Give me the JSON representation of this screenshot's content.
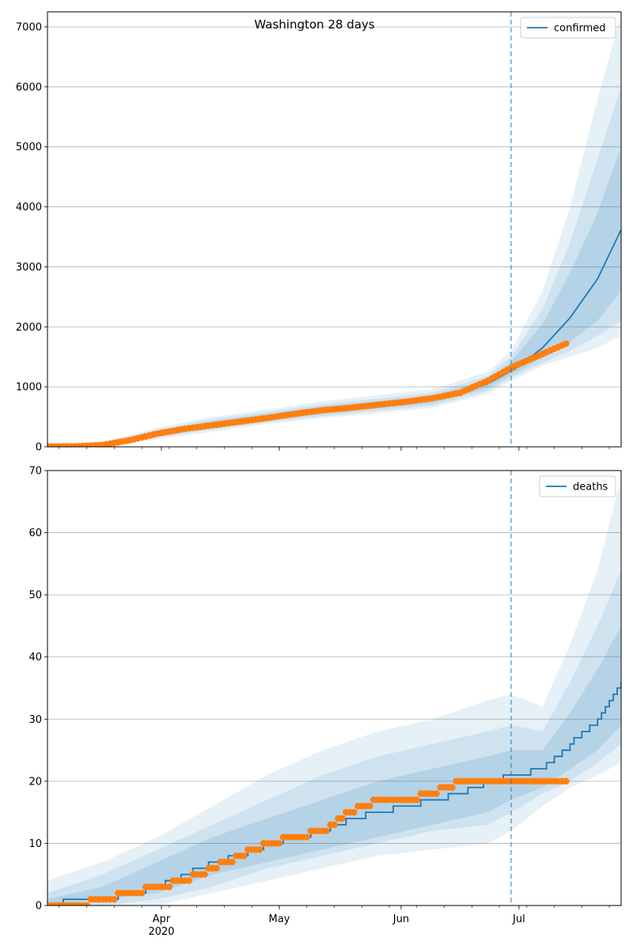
{
  "chart_data": [
    {
      "type": "line",
      "title": "Washington 28 days",
      "xlabel": "",
      "ylabel": "",
      "x_range": [
        "2020-03-03",
        "2020-07-27"
      ],
      "ylim": [
        0,
        7250
      ],
      "yticks": [
        0,
        1000,
        2000,
        3000,
        4000,
        5000,
        6000,
        7000
      ],
      "grid": "y-major",
      "legend": {
        "position": "upper right",
        "entries": [
          "confirmed"
        ]
      },
      "forecast_start": "2020-06-29",
      "series": [
        {
          "name": "confirmed",
          "color": "#1f77b4",
          "kind": "model-median",
          "x": [
            "2020-03-03",
            "2020-03-10",
            "2020-03-17",
            "2020-03-24",
            "2020-03-31",
            "2020-04-07",
            "2020-04-14",
            "2020-04-21",
            "2020-04-28",
            "2020-05-05",
            "2020-05-12",
            "2020-05-19",
            "2020-05-26",
            "2020-06-02",
            "2020-06-09",
            "2020-06-16",
            "2020-06-23",
            "2020-06-30",
            "2020-07-07",
            "2020-07-14",
            "2020-07-21",
            "2020-07-27"
          ],
          "values": [
            5,
            8,
            25,
            100,
            220,
            310,
            380,
            440,
            500,
            560,
            620,
            670,
            720,
            770,
            830,
            910,
            1050,
            1300,
            1650,
            2150,
            2800,
            3620
          ]
        },
        {
          "name": "observed",
          "color": "#ff7f0e",
          "kind": "markers",
          "x": [
            "2020-03-03",
            "2020-03-10",
            "2020-03-17",
            "2020-03-24",
            "2020-03-31",
            "2020-04-07",
            "2020-04-14",
            "2020-04-21",
            "2020-04-28",
            "2020-05-05",
            "2020-05-12",
            "2020-05-19",
            "2020-05-26",
            "2020-06-02",
            "2020-06-09",
            "2020-06-16",
            "2020-06-23",
            "2020-06-30",
            "2020-07-07",
            "2020-07-13"
          ],
          "values": [
            5,
            8,
            30,
            110,
            220,
            300,
            360,
            420,
            480,
            550,
            610,
            650,
            700,
            750,
            810,
            900,
            1100,
            1350,
            1550,
            1720
          ]
        }
      ],
      "bands": [
        {
          "x": [
            "2020-03-03",
            "2020-03-17",
            "2020-03-31",
            "2020-04-14",
            "2020-04-28",
            "2020-05-12",
            "2020-05-26",
            "2020-06-09",
            "2020-06-23",
            "2020-06-29",
            "2020-07-07",
            "2020-07-14",
            "2020-07-21",
            "2020-07-27"
          ],
          "lower": [
            0,
            0,
            130,
            250,
            380,
            480,
            560,
            650,
            880,
            1100,
            1350,
            1500,
            1650,
            1850
          ],
          "upper": [
            10,
            70,
            320,
            500,
            620,
            760,
            860,
            960,
            1250,
            1600,
            2600,
            4000,
            5800,
            7200
          ]
        },
        {
          "x": [
            "2020-03-03",
            "2020-03-17",
            "2020-03-31",
            "2020-04-14",
            "2020-04-28",
            "2020-05-12",
            "2020-05-26",
            "2020-06-09",
            "2020-06-23",
            "2020-06-29",
            "2020-07-07",
            "2020-07-14",
            "2020-07-21",
            "2020-07-27"
          ],
          "lower": [
            0,
            5,
            160,
            290,
            410,
            510,
            600,
            690,
            930,
            1150,
            1400,
            1600,
            1850,
            2100
          ],
          "upper": [
            8,
            55,
            290,
            460,
            580,
            710,
            800,
            900,
            1180,
            1500,
            2300,
            3400,
            4800,
            6000
          ]
        },
        {
          "x": [
            "2020-03-03",
            "2020-03-17",
            "2020-03-31",
            "2020-04-14",
            "2020-04-28",
            "2020-05-12",
            "2020-05-26",
            "2020-06-09",
            "2020-06-23",
            "2020-06-29",
            "2020-07-07",
            "2020-07-14",
            "2020-07-21",
            "2020-07-27"
          ],
          "lower": [
            2,
            12,
            185,
            320,
            440,
            545,
            640,
            730,
            980,
            1200,
            1480,
            1750,
            2100,
            2600
          ],
          "upper": [
            6,
            42,
            260,
            430,
            550,
            670,
            760,
            850,
            1120,
            1420,
            2050,
            2900,
            3900,
            5000
          ]
        }
      ],
      "xticks": [
        "Apr\n2020",
        "May",
        "Jun",
        "Jul"
      ]
    },
    {
      "type": "line",
      "title": "",
      "xlabel": "",
      "ylabel": "",
      "x_range": [
        "2020-03-03",
        "2020-07-27"
      ],
      "ylim": [
        0,
        70
      ],
      "yticks": [
        0,
        10,
        20,
        30,
        40,
        50,
        60,
        70
      ],
      "grid": "y-major",
      "legend": {
        "position": "upper right",
        "entries": [
          "deaths"
        ]
      },
      "forecast_start": "2020-06-29",
      "series": [
        {
          "name": "deaths",
          "color": "#1f77b4",
          "kind": "model-median-step",
          "x": [
            "2020-03-03",
            "2020-03-10",
            "2020-03-17",
            "2020-03-24",
            "2020-03-31",
            "2020-04-07",
            "2020-04-14",
            "2020-04-21",
            "2020-04-28",
            "2020-05-05",
            "2020-05-12",
            "2020-05-19",
            "2020-05-26",
            "2020-06-02",
            "2020-06-09",
            "2020-06-16",
            "2020-06-23",
            "2020-06-30",
            "2020-07-07",
            "2020-07-14",
            "2020-07-21",
            "2020-07-27"
          ],
          "values": [
            0,
            1,
            1,
            2,
            3,
            5,
            7,
            8,
            10,
            11,
            12,
            14,
            15,
            16,
            17,
            18,
            20,
            21,
            22,
            26,
            30,
            36
          ]
        },
        {
          "name": "observed",
          "color": "#ff7f0e",
          "kind": "markers",
          "x": [
            "2020-03-03",
            "2020-03-10",
            "2020-03-17",
            "2020-03-24",
            "2020-03-31",
            "2020-04-07",
            "2020-04-14",
            "2020-04-21",
            "2020-04-28",
            "2020-05-05",
            "2020-05-12",
            "2020-05-19",
            "2020-05-26",
            "2020-06-02",
            "2020-06-09",
            "2020-06-16",
            "2020-06-23",
            "2020-06-30",
            "2020-07-07",
            "2020-07-13"
          ],
          "values": [
            0,
            0,
            1,
            2,
            3,
            4,
            6,
            8,
            10,
            11,
            12,
            15,
            17,
            17,
            18,
            20,
            20,
            20,
            20,
            20
          ]
        }
      ],
      "bands": [
        {
          "x": [
            "2020-03-03",
            "2020-03-17",
            "2020-03-31",
            "2020-04-14",
            "2020-04-28",
            "2020-05-12",
            "2020-05-26",
            "2020-06-09",
            "2020-06-23",
            "2020-06-29",
            "2020-07-07",
            "2020-07-14",
            "2020-07-21",
            "2020-07-27"
          ],
          "lower": [
            0,
            0,
            0,
            2,
            4,
            6,
            8,
            9,
            10,
            12,
            16,
            19,
            21,
            23
          ],
          "upper": [
            4,
            7,
            11,
            16,
            21,
            25,
            28,
            30,
            33,
            34,
            32,
            42,
            54,
            69
          ]
        },
        {
          "x": [
            "2020-03-03",
            "2020-03-17",
            "2020-03-31",
            "2020-04-14",
            "2020-04-28",
            "2020-05-12",
            "2020-05-26",
            "2020-06-09",
            "2020-06-23",
            "2020-06-29",
            "2020-07-07",
            "2020-07-14",
            "2020-07-21",
            "2020-07-27"
          ],
          "lower": [
            0,
            0,
            1,
            3,
            6,
            8,
            10,
            12,
            13,
            15,
            18,
            20,
            23,
            26
          ],
          "upper": [
            2,
            5,
            9,
            13,
            17,
            21,
            24,
            26,
            28,
            29,
            28,
            36,
            45,
            54
          ]
        },
        {
          "x": [
            "2020-03-03",
            "2020-03-17",
            "2020-03-31",
            "2020-04-14",
            "2020-04-28",
            "2020-05-12",
            "2020-05-26",
            "2020-06-09",
            "2020-06-23",
            "2020-06-29",
            "2020-07-07",
            "2020-07-14",
            "2020-07-21",
            "2020-07-27"
          ],
          "lower": [
            0,
            1,
            2,
            5,
            7,
            9,
            11,
            13,
            15,
            17,
            19,
            22,
            25,
            29
          ],
          "upper": [
            1,
            3,
            7,
            11,
            14,
            17,
            20,
            22,
            24,
            25,
            25,
            31,
            38,
            45
          ]
        }
      ],
      "xticks": [
        "Apr\n2020",
        "May",
        "Jun",
        "Jul"
      ]
    }
  ],
  "colors": {
    "model": "#1f77b4",
    "observed": "#ff7f0e",
    "band": "#1f77b4",
    "grid": "#b0b0b0"
  }
}
